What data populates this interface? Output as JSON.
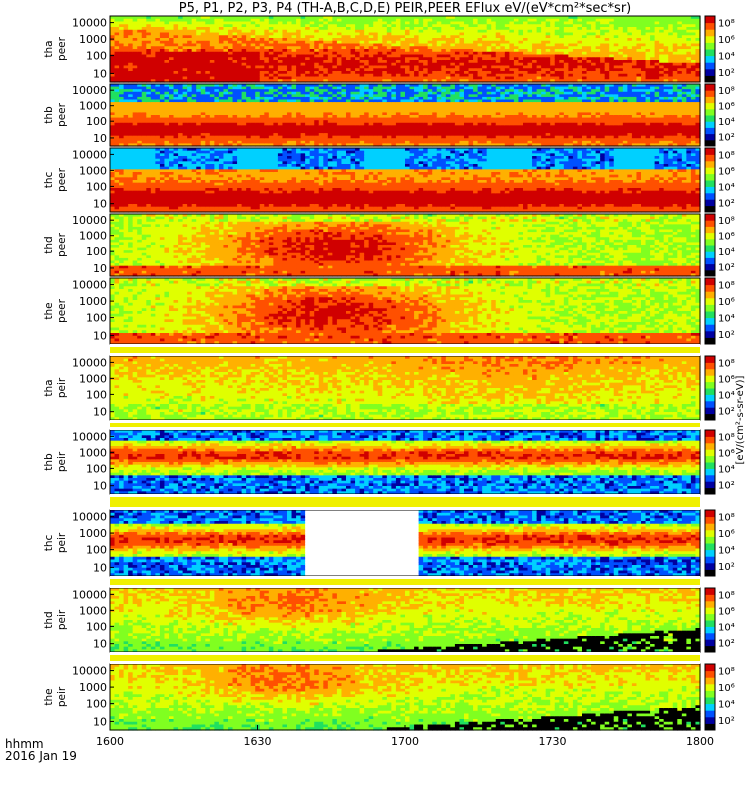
{
  "chart_data": {
    "type": "heatmap",
    "title": "P5, P1, P2, P3, P4 (TH-A,B,C,D,E) PEIR,PEER EFlux eV/(eV*cm²*sec*sr)",
    "x_tick_labels": [
      "1600",
      "1630",
      "1700",
      "1730",
      "1800"
    ],
    "x_label_lines": [
      "hhmm",
      "2016 Jan 19"
    ],
    "y_tick_labels": [
      "10000",
      "1000",
      "100",
      "10"
    ],
    "colorbar_tick_labels": [
      "10⁸",
      "10⁶",
      "10⁴",
      "10²"
    ],
    "colorbar_label": "[eV/(cm²-s-sr-eV)]",
    "colors": [
      "#000000",
      "#0000a0",
      "#0050ff",
      "#00d0ff",
      "#20e060",
      "#80ff20",
      "#e0ff00",
      "#ffb000",
      "#ff5000",
      "#d00000"
    ],
    "panels": [
      {
        "probe": "tha",
        "species": "peer",
        "pattern": "electron-tail-descending"
      },
      {
        "probe": "thb",
        "species": "peer",
        "pattern": "steady-band"
      },
      {
        "probe": "thc",
        "species": "peer",
        "pattern": "steady-band-with-blocks"
      },
      {
        "probe": "thd",
        "species": "peer",
        "pattern": "hot-hump"
      },
      {
        "probe": "the",
        "species": "peer",
        "pattern": "hot-hump"
      },
      {
        "probe": "tha",
        "species": "peir",
        "pattern": "ion-warm"
      },
      {
        "probe": "thb",
        "species": "peir",
        "pattern": "ion-band"
      },
      {
        "probe": "thc",
        "species": "peir",
        "pattern": "ion-band-gap"
      },
      {
        "probe": "thd",
        "species": "peir",
        "pattern": "ion-dropout"
      },
      {
        "probe": "the",
        "species": "peir",
        "pattern": "ion-dropout"
      }
    ]
  }
}
